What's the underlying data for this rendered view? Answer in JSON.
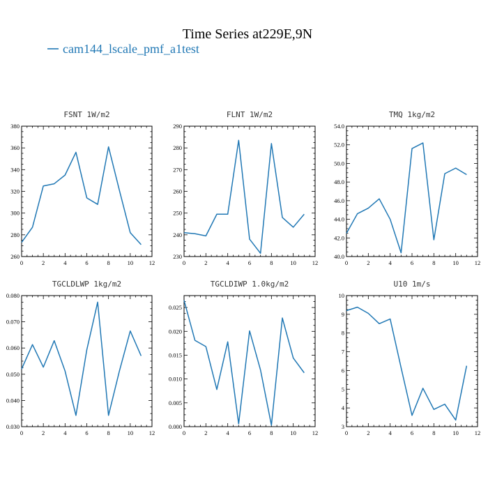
{
  "figure": {
    "title": "Time Series at229E,9N",
    "legend_label": "cam144_lscale_pmf_a1test",
    "line_color": "#1f77b4"
  },
  "chart_data": [
    {
      "type": "line",
      "title": "FSNT   1W/m2",
      "xlim": [
        0,
        12
      ],
      "ylim": [
        260,
        380
      ],
      "xticks": [
        "0",
        "2",
        "4",
        "6",
        "8",
        "10",
        "12"
      ],
      "yticks": [
        "260",
        "280",
        "300",
        "320",
        "340",
        "360",
        "380"
      ],
      "x": [
        0,
        1,
        2,
        3,
        4,
        5,
        6,
        7,
        8,
        9,
        10,
        11
      ],
      "values": [
        273,
        287,
        325,
        327,
        335,
        356,
        314,
        308,
        361,
        321,
        282,
        271
      ]
    },
    {
      "type": "line",
      "title": "FLNT   1W/m2",
      "xlim": [
        0,
        12
      ],
      "ylim": [
        230,
        290
      ],
      "xticks": [
        "0",
        "2",
        "4",
        "6",
        "8",
        "10",
        "12"
      ],
      "yticks": [
        "230",
        "240",
        "250",
        "260",
        "270",
        "280",
        "290"
      ],
      "x": [
        0,
        1,
        2,
        3,
        4,
        5,
        6,
        7,
        8,
        9,
        10,
        11
      ],
      "values": [
        241,
        240.5,
        239.5,
        249.5,
        249.5,
        283.5,
        238,
        231.5,
        282,
        248,
        243.5,
        249.5
      ]
    },
    {
      "type": "line",
      "title": "TMQ   1kg/m2",
      "xlim": [
        0,
        12
      ],
      "ylim": [
        40,
        54
      ],
      "xticks": [
        "0",
        "2",
        "4",
        "6",
        "8",
        "10",
        "12"
      ],
      "yticks": [
        "40.0",
        "42.0",
        "44.0",
        "46.0",
        "48.0",
        "50.0",
        "52.0",
        "54.0"
      ],
      "x": [
        0,
        1,
        2,
        3,
        4,
        5,
        6,
        7,
        8,
        9,
        10,
        11
      ],
      "values": [
        42.5,
        44.6,
        45.2,
        46.2,
        44.0,
        40.4,
        51.6,
        52.2,
        41.8,
        48.9,
        49.5,
        48.8
      ]
    },
    {
      "type": "line",
      "title": "TGCLDLWP   1kg/m2",
      "xlim": [
        0,
        12
      ],
      "ylim": [
        0.03,
        0.08
      ],
      "xticks": [
        "0",
        "2",
        "4",
        "6",
        "8",
        "10",
        "12"
      ],
      "yticks": [
        "0.030",
        "0.040",
        "0.050",
        "0.060",
        "0.070",
        "0.080"
      ],
      "x": [
        0,
        1,
        2,
        3,
        4,
        5,
        6,
        7,
        8,
        9,
        10,
        11
      ],
      "values": [
        0.052,
        0.0613,
        0.0527,
        0.0628,
        0.0512,
        0.0343,
        0.0593,
        0.0775,
        0.0343,
        0.0512,
        0.0665,
        0.057
      ]
    },
    {
      "type": "line",
      "title": "TGCLDIWP   1.0kg/m2",
      "xlim": [
        0,
        12
      ],
      "ylim": [
        0,
        0.0275
      ],
      "xticks": [
        "0",
        "2",
        "4",
        "6",
        "8",
        "10",
        "12"
      ],
      "yticks": [
        "0.000",
        "0.005",
        "0.010",
        "0.015",
        "0.020",
        "0.025"
      ],
      "x": [
        0,
        1,
        2,
        3,
        4,
        5,
        6,
        7,
        8,
        9,
        10,
        11
      ],
      "values": [
        0.0265,
        0.0181,
        0.0168,
        0.0078,
        0.0178,
        0.0006,
        0.0201,
        0.0119,
        0.0003,
        0.0228,
        0.0144,
        0.0113
      ]
    },
    {
      "type": "line",
      "title": "U10   1m/s",
      "xlim": [
        0,
        12
      ],
      "ylim": [
        3,
        10
      ],
      "xticks": [
        "0",
        "2",
        "4",
        "6",
        "8",
        "10",
        "12"
      ],
      "yticks": [
        "3",
        "4",
        "5",
        "6",
        "7",
        "8",
        "9",
        "10"
      ],
      "x": [
        0,
        1,
        2,
        3,
        4,
        5,
        6,
        7,
        8,
        9,
        10,
        11
      ],
      "values": [
        9.2,
        9.38,
        9.05,
        8.5,
        8.75,
        6.15,
        3.6,
        5.05,
        3.92,
        4.2,
        3.35,
        6.25
      ]
    }
  ]
}
